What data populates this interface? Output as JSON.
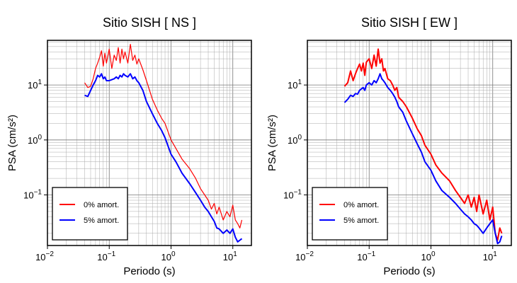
{
  "chart_data": [
    {
      "type": "line",
      "title": "Sitio SISH [ NS ]",
      "xlabel": "Periodo (s)",
      "ylabel": "PSA (cm/s²)",
      "xscale": "log",
      "yscale": "log",
      "xlim": [
        0.01,
        20
      ],
      "ylim": [
        0.012,
        65
      ],
      "grid": true,
      "legend_position": "bottom-left",
      "x_ticks": [
        {
          "base": "10",
          "exp": "−2"
        },
        {
          "base": "10",
          "exp": "−1"
        },
        {
          "base": "10",
          "exp": "0"
        },
        {
          "base": "10",
          "exp": "1"
        }
      ],
      "y_ticks": [
        {
          "base": "10",
          "exp": "−1"
        },
        {
          "base": "10",
          "exp": "0"
        },
        {
          "base": "10",
          "exp": "1"
        }
      ],
      "series": [
        {
          "name": "0% amort.",
          "color": "#ff0000",
          "x": [
            0.04,
            0.045,
            0.05,
            0.055,
            0.06,
            0.065,
            0.07,
            0.075,
            0.08,
            0.085,
            0.09,
            0.1,
            0.11,
            0.12,
            0.13,
            0.14,
            0.15,
            0.16,
            0.17,
            0.18,
            0.2,
            0.22,
            0.24,
            0.26,
            0.28,
            0.3,
            0.35,
            0.4,
            0.5,
            0.6,
            0.7,
            0.8,
            1.0,
            1.2,
            1.5,
            2.0,
            2.5,
            3.0,
            3.5,
            4.0,
            4.5,
            5.0,
            5.5,
            6.0,
            7.0,
            8.0,
            9.0,
            10.0,
            11.0,
            12.0,
            13.0,
            14.0
          ],
          "y": [
            11,
            9,
            9.5,
            13,
            20,
            25,
            32,
            42,
            22,
            38,
            25,
            45,
            20,
            35,
            28,
            48,
            25,
            45,
            30,
            40,
            25,
            55,
            28,
            35,
            24,
            30,
            19,
            12,
            5.5,
            3.5,
            2.5,
            2.0,
            1.0,
            0.7,
            0.45,
            0.3,
            0.2,
            0.13,
            0.1,
            0.08,
            0.055,
            0.07,
            0.045,
            0.06,
            0.035,
            0.05,
            0.04,
            0.065,
            0.035,
            0.03,
            0.025,
            0.035
          ]
        },
        {
          "name": "5% amort.",
          "color": "#0000ff",
          "x": [
            0.04,
            0.045,
            0.05,
            0.055,
            0.06,
            0.065,
            0.07,
            0.075,
            0.08,
            0.085,
            0.09,
            0.1,
            0.11,
            0.12,
            0.13,
            0.14,
            0.15,
            0.16,
            0.17,
            0.18,
            0.2,
            0.22,
            0.24,
            0.26,
            0.28,
            0.3,
            0.35,
            0.4,
            0.5,
            0.6,
            0.7,
            0.8,
            1.0,
            1.2,
            1.5,
            2.0,
            2.5,
            3.0,
            3.5,
            4.0,
            4.5,
            5.0,
            5.5,
            6.0,
            7.0,
            8.0,
            9.0,
            10.0,
            11.0,
            12.0,
            13.0,
            14.0
          ],
          "y": [
            6.5,
            6.2,
            8,
            10,
            12,
            15,
            14,
            16,
            13,
            14,
            12,
            12,
            12.5,
            13,
            14,
            13,
            15,
            14,
            16,
            15,
            14,
            16,
            13,
            14,
            12,
            11,
            8,
            5,
            3.0,
            2.0,
            1.5,
            1.1,
            0.55,
            0.4,
            0.25,
            0.16,
            0.11,
            0.08,
            0.06,
            0.05,
            0.04,
            0.033,
            0.025,
            0.024,
            0.02,
            0.023,
            0.02,
            0.024,
            0.017,
            0.014,
            0.015,
            0.016
          ]
        }
      ]
    },
    {
      "type": "line",
      "title": "Sitio SISH [ EW ]",
      "xlabel": "Periodo (s)",
      "ylabel": "PSA (cm/s²)",
      "xscale": "log",
      "yscale": "log",
      "xlim": [
        0.01,
        20
      ],
      "ylim": [
        0.012,
        65
      ],
      "grid": true,
      "legend_position": "bottom-left",
      "x_ticks": [
        {
          "base": "10",
          "exp": "−2"
        },
        {
          "base": "10",
          "exp": "−1"
        },
        {
          "base": "10",
          "exp": "0"
        },
        {
          "base": "10",
          "exp": "1"
        }
      ],
      "y_ticks": [
        {
          "base": "10",
          "exp": "−1"
        },
        {
          "base": "10",
          "exp": "0"
        },
        {
          "base": "10",
          "exp": "1"
        }
      ],
      "series": [
        {
          "name": "0% amort.",
          "color": "#ff0000",
          "x": [
            0.04,
            0.045,
            0.05,
            0.055,
            0.06,
            0.065,
            0.07,
            0.075,
            0.08,
            0.085,
            0.09,
            0.1,
            0.11,
            0.12,
            0.13,
            0.14,
            0.15,
            0.16,
            0.17,
            0.18,
            0.2,
            0.22,
            0.24,
            0.26,
            0.28,
            0.3,
            0.35,
            0.4,
            0.5,
            0.6,
            0.7,
            0.8,
            1.0,
            1.2,
            1.5,
            2.0,
            2.5,
            3.0,
            3.5,
            4.0,
            4.5,
            5.0,
            5.5,
            6.0,
            7.0,
            8.0,
            9.0,
            10.0,
            11.0,
            12.0,
            13.0,
            14.0
          ],
          "y": [
            9.5,
            11,
            18,
            12,
            16,
            20,
            24,
            18,
            25,
            15,
            26,
            30,
            20,
            35,
            22,
            45,
            25,
            30,
            18,
            20,
            13,
            12,
            10,
            8,
            9,
            6,
            5,
            4,
            2.5,
            1.6,
            1.2,
            0.8,
            0.55,
            0.35,
            0.25,
            0.18,
            0.12,
            0.09,
            0.07,
            0.1,
            0.06,
            0.09,
            0.05,
            0.1,
            0.045,
            0.08,
            0.035,
            0.06,
            0.02,
            0.015,
            0.025,
            0.02
          ]
        },
        {
          "name": "5% amort.",
          "color": "#0000ff",
          "x": [
            0.04,
            0.045,
            0.05,
            0.055,
            0.06,
            0.065,
            0.07,
            0.075,
            0.08,
            0.085,
            0.09,
            0.1,
            0.11,
            0.12,
            0.13,
            0.14,
            0.15,
            0.16,
            0.17,
            0.18,
            0.2,
            0.22,
            0.24,
            0.26,
            0.28,
            0.3,
            0.35,
            0.4,
            0.5,
            0.6,
            0.7,
            0.8,
            1.0,
            1.2,
            1.5,
            2.0,
            2.5,
            3.0,
            3.5,
            4.0,
            4.5,
            5.0,
            5.5,
            6.0,
            7.0,
            8.0,
            9.0,
            10.0,
            11.0,
            12.0,
            13.0,
            14.0
          ],
          "y": [
            4.8,
            5.5,
            6.5,
            6.2,
            7,
            6.8,
            8,
            8.5,
            9,
            8,
            10,
            11,
            10,
            12,
            11,
            13,
            16,
            13,
            12,
            11,
            9,
            8,
            7,
            6,
            5,
            4,
            3.2,
            2.2,
            1.3,
            0.85,
            0.6,
            0.4,
            0.28,
            0.18,
            0.12,
            0.09,
            0.07,
            0.055,
            0.045,
            0.04,
            0.035,
            0.03,
            0.028,
            0.025,
            0.02,
            0.025,
            0.03,
            0.035,
            0.02,
            0.013,
            0.014,
            0.018
          ]
        }
      ]
    }
  ]
}
